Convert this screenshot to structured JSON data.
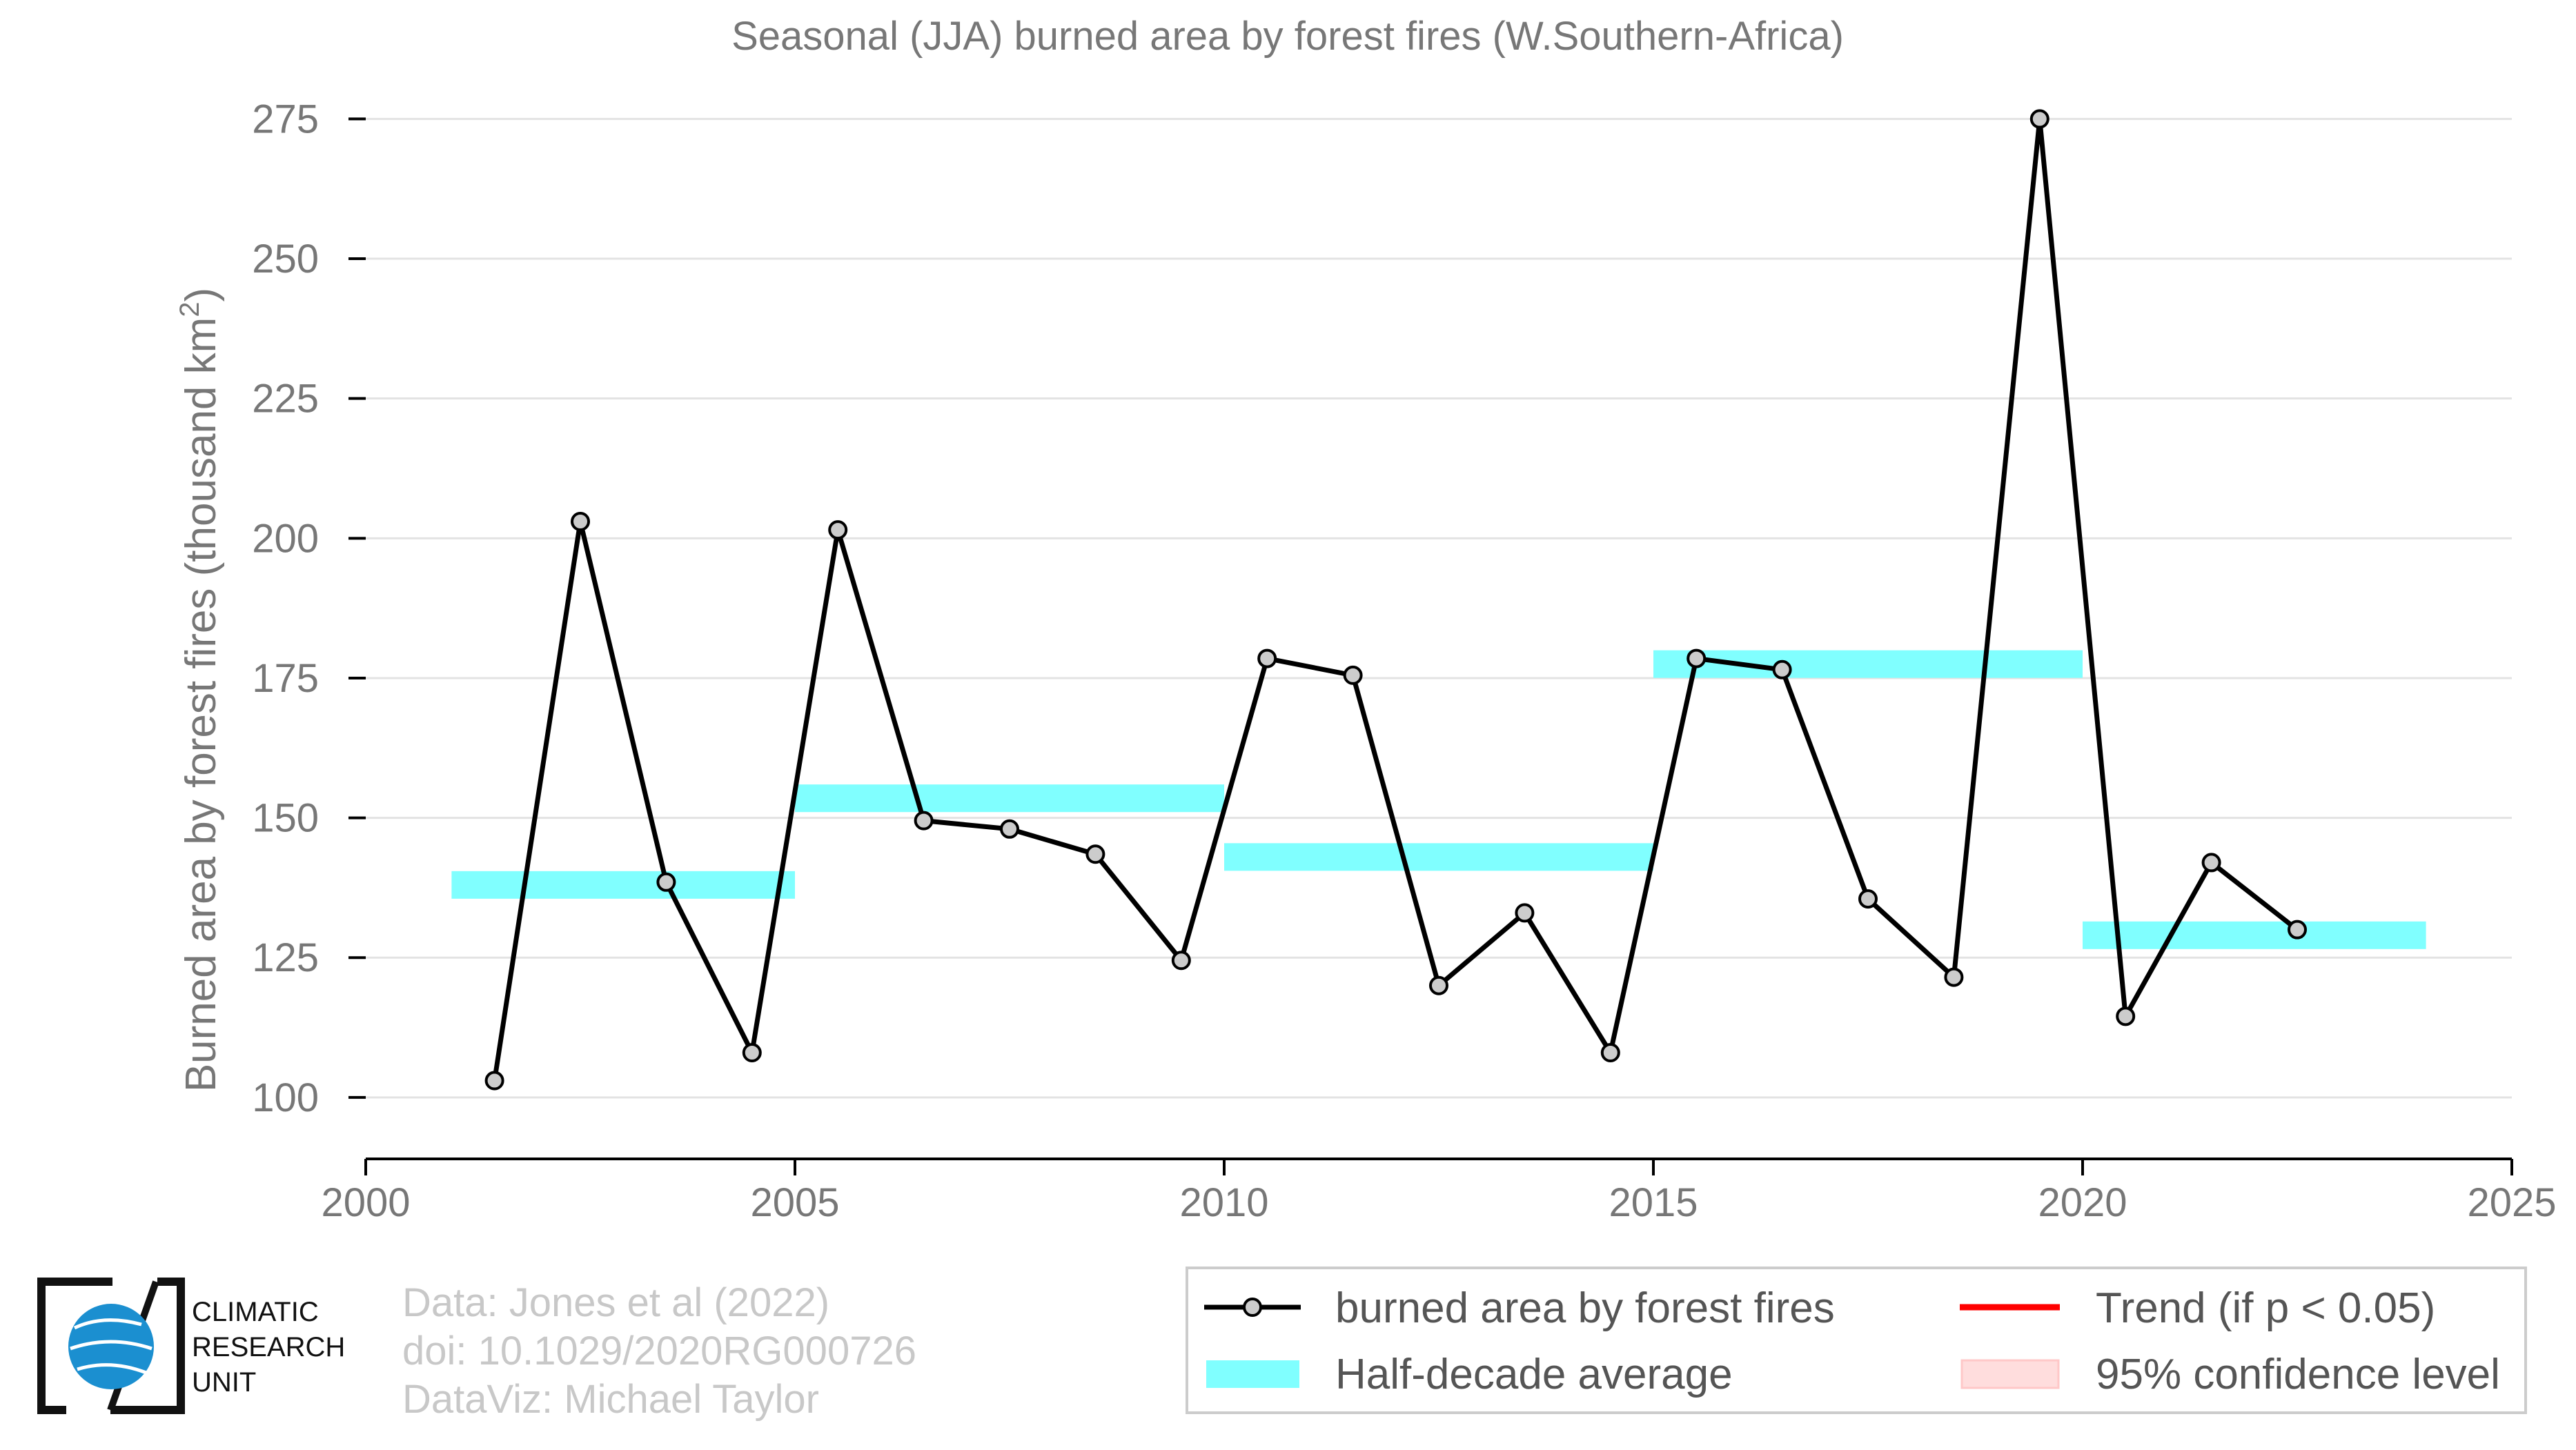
{
  "chart_data": {
    "type": "line",
    "title": "Seasonal (JJA) burned area by forest fires (W.Southern-Africa)",
    "xlabel": "",
    "ylabel": "Burned area by forest fires (thousand km",
    "ylabel_superscript": "2",
    "ylabel_close": ")",
    "xlim": [
      2000,
      2025
    ],
    "ylim": [
      89,
      279
    ],
    "x_ticks": [
      2000,
      2005,
      2010,
      2015,
      2020,
      2025
    ],
    "y_ticks": [
      100,
      125,
      150,
      175,
      200,
      225,
      250,
      275
    ],
    "grid": "horizontal",
    "legend_position": "bottom-right",
    "series": [
      {
        "name": "burned area by forest fires",
        "color": "#000000",
        "marker_fill": "#cccccc",
        "x": [
          2001.5,
          2002.5,
          2003.5,
          2004.5,
          2005.5,
          2006.5,
          2007.5,
          2008.5,
          2009.5,
          2010.5,
          2011.5,
          2012.5,
          2013.5,
          2014.5,
          2015.5,
          2016.5,
          2017.5,
          2018.5,
          2019.5,
          2020.5,
          2021.5,
          2022.5
        ],
        "values": [
          103,
          203,
          138.5,
          108,
          201.5,
          149.5,
          148,
          143.5,
          124.5,
          178.5,
          175.5,
          120,
          133,
          108,
          178.5,
          176.5,
          135.5,
          121.5,
          275,
          114.5,
          142,
          130
        ]
      }
    ],
    "half_decade_averages": {
      "name": "Half-decade average",
      "color": "#80ffff",
      "segments": [
        {
          "x_start": 2001,
          "x_end": 2005,
          "value": 138
        },
        {
          "x_start": 2005,
          "x_end": 2010,
          "value": 153.5
        },
        {
          "x_start": 2010,
          "x_end": 2015,
          "value": 143
        },
        {
          "x_start": 2015,
          "x_end": 2020,
          "value": 177.5
        },
        {
          "x_start": 2020,
          "x_end": 2024,
          "value": 129
        }
      ]
    },
    "legend": [
      {
        "label": "burned area by forest fires",
        "kind": "line-marker",
        "color": "#000000"
      },
      {
        "label": "Trend (if p < 0.05)",
        "kind": "line",
        "color": "#ff0000"
      },
      {
        "label": "Half-decade average",
        "kind": "band",
        "color": "#80ffff"
      },
      {
        "label": "95% confidence level",
        "kind": "band",
        "color": "#ffdddd"
      }
    ]
  },
  "credits": {
    "line1": "Data: Jones et al (2022)",
    "line2": "doi: 10.1029/2020RG000726",
    "line3": "DataViz: Michael Taylor"
  },
  "logo": {
    "line1": "CLIMATIC",
    "line2": "RESEARCH",
    "line3": "UNIT",
    "globe_color": "#1b8fd0"
  }
}
